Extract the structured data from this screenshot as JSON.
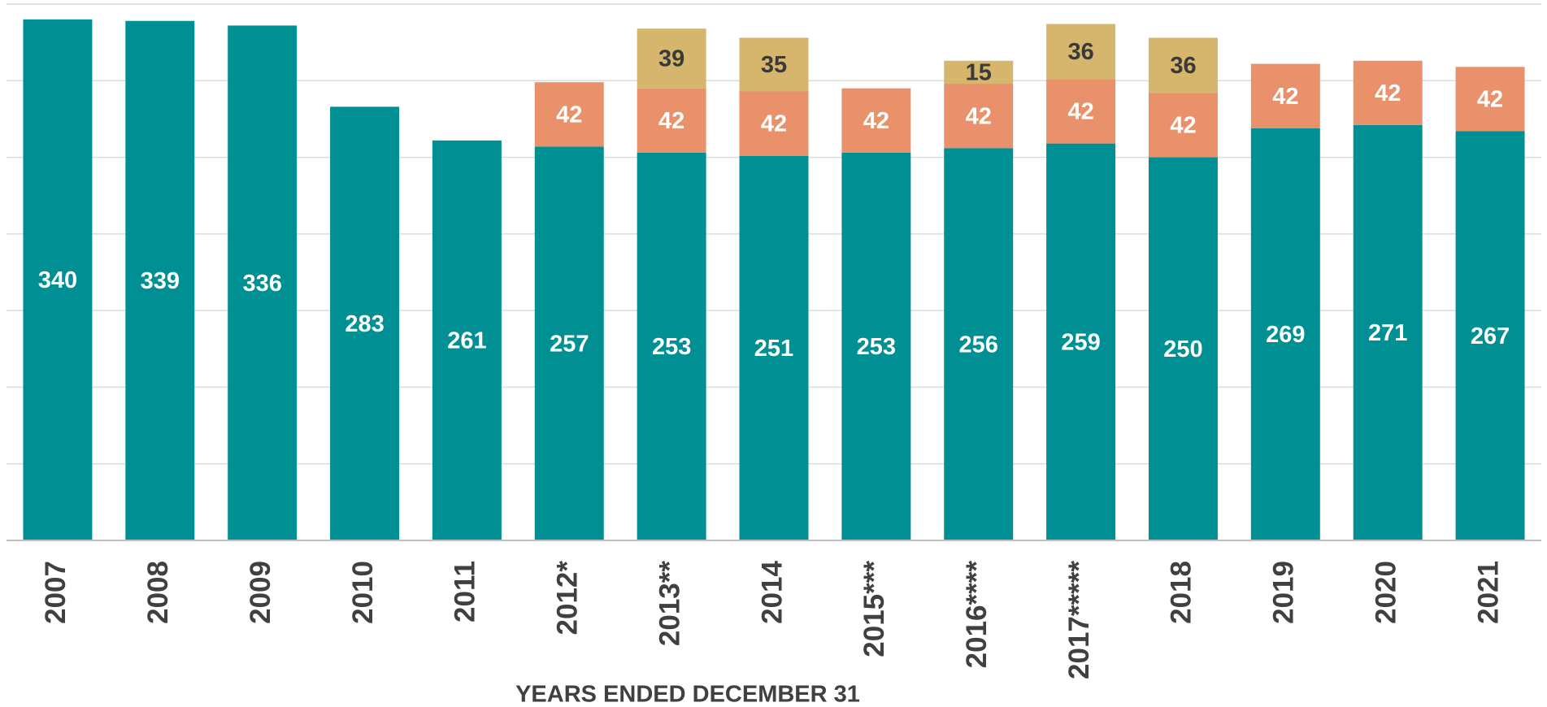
{
  "chart_data": {
    "type": "stacked_bar",
    "categories": [
      "2007",
      "2008",
      "2009",
      "2010",
      "2011",
      "2012*",
      "2013**",
      "2014",
      "2015***",
      "2016****",
      "2017*****",
      "2018",
      "2019",
      "2020",
      "2021"
    ],
    "series": [
      {
        "color": "#009093",
        "label_color": "#ffffff",
        "values": [
          340,
          339,
          336,
          283,
          261,
          257,
          253,
          251,
          253,
          256,
          259,
          250,
          269,
          271,
          267
        ]
      },
      {
        "color": "#e8916a",
        "label_color": "#ffffff",
        "values": [
          null,
          null,
          null,
          null,
          null,
          42,
          42,
          42,
          42,
          42,
          42,
          42,
          42,
          42,
          42
        ]
      },
      {
        "color": "#d6b56c",
        "label_color": "#3a3a3a",
        "values": [
          null,
          null,
          null,
          null,
          null,
          null,
          39,
          35,
          null,
          15,
          36,
          36,
          null,
          null,
          null
        ]
      }
    ],
    "x_label": "YEARS ENDED DECEMBER 31",
    "ylim": [
      0,
      350
    ],
    "yticks": [
      0,
      50,
      100,
      150,
      200,
      250,
      300,
      350
    ],
    "grid": true
  }
}
